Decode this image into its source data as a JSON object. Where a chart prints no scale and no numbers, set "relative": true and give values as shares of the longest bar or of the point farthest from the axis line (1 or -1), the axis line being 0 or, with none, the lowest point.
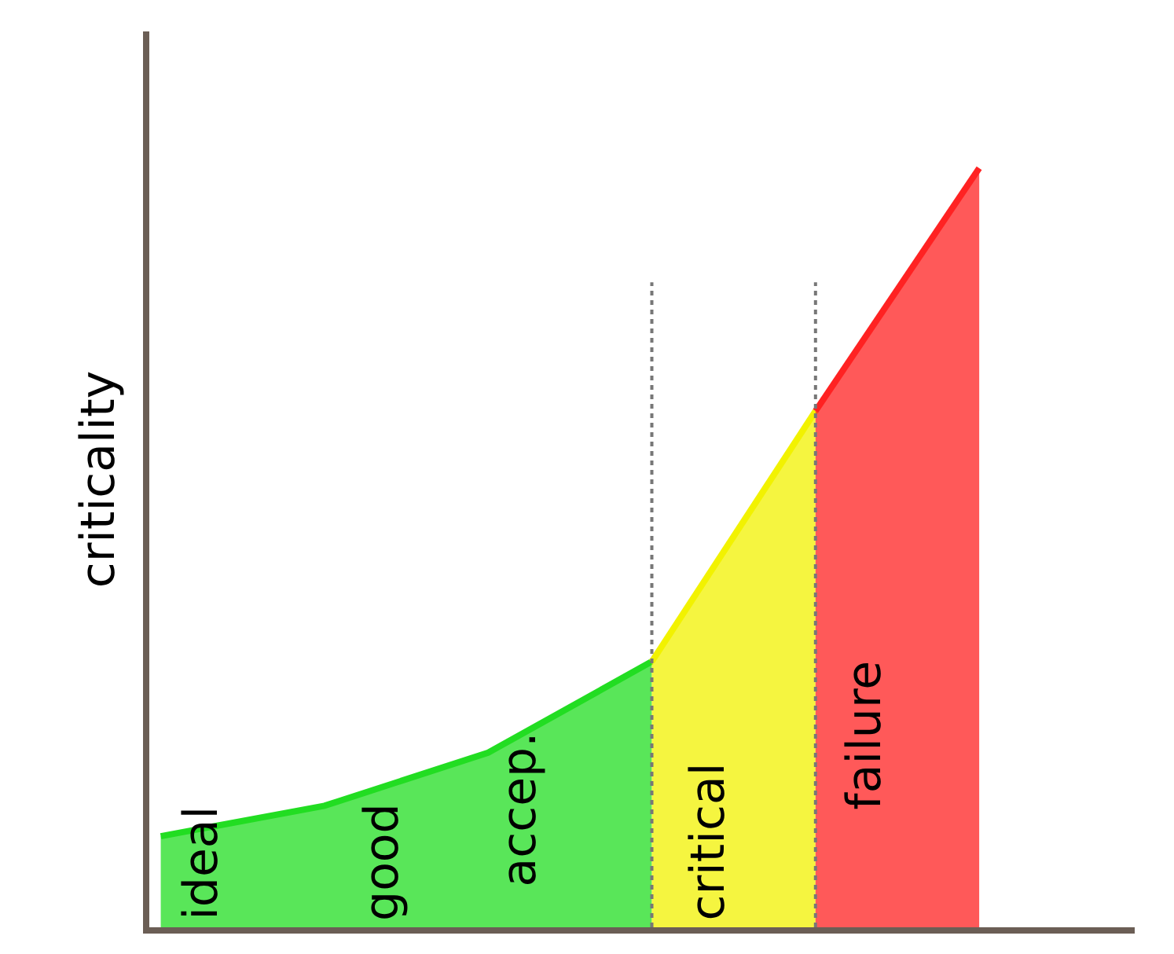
{
  "chart_data": {
    "type": "area",
    "relative": true,
    "ylabel": "criticality",
    "categories": [
      null,
      null,
      null,
      null,
      null,
      null
    ],
    "series": [
      {
        "color": "#22dd22",
        "values": [
          0.12,
          0.16,
          0.23,
          0.35,
          null,
          null
        ]
      },
      {
        "color": "#f2f200",
        "values": [
          null,
          null,
          null,
          0.35,
          0.68,
          null
        ]
      },
      {
        "color": "#ff2222",
        "values": [
          null,
          null,
          null,
          null,
          0.68,
          1
        ]
      }
    ],
    "annotations": [
      "ideal",
      "good",
      "accep.",
      "critical",
      "failure"
    ],
    "legend": false,
    "tick_labels": false
  }
}
